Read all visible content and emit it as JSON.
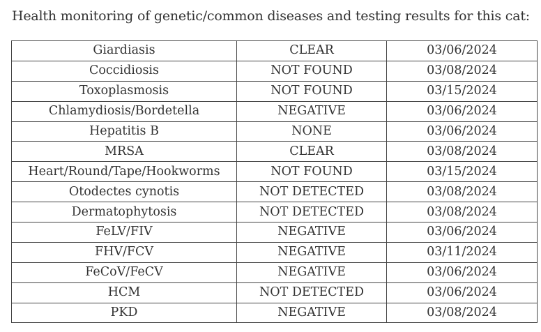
{
  "title": "Health monitoring of genetic/common diseases and testing results for this cat:",
  "table": {
    "rows": [
      [
        "Giardiasis",
        "CLEAR",
        "03/06/2024"
      ],
      [
        "Coccidiosis",
        "NOT FOUND",
        "03/08/2024"
      ],
      [
        "Toxoplasmosis",
        "NOT FOUND",
        "03/15/2024"
      ],
      [
        "Chlamydiosis/Bordetella",
        "NEGATIVE",
        "03/06/2024"
      ],
      [
        "Hepatitis B",
        "NONE",
        "03/06/2024"
      ],
      [
        "MRSA",
        "CLEAR",
        "03/08/2024"
      ],
      [
        "Heart/Round/Tape/Hookworms",
        "NOT FOUND",
        "03/15/2024"
      ],
      [
        "Otodectes cynotis",
        "NOT DETECTED",
        "03/08/2024"
      ],
      [
        "Dermatophytosis",
        "NOT DETECTED",
        "03/08/2024"
      ],
      [
        "FeLV/FIV",
        "NEGATIVE",
        "03/06/2024"
      ],
      [
        "FHV/FCV",
        "NEGATIVE",
        "03/11/2024"
      ],
      [
        "FeCoV/FeCV",
        "NEGATIVE",
        "03/06/2024"
      ],
      [
        "HCM",
        "NOT DETECTED",
        "03/06/2024"
      ],
      [
        "PKD",
        "NEGATIVE",
        "03/08/2024"
      ]
    ]
  }
}
